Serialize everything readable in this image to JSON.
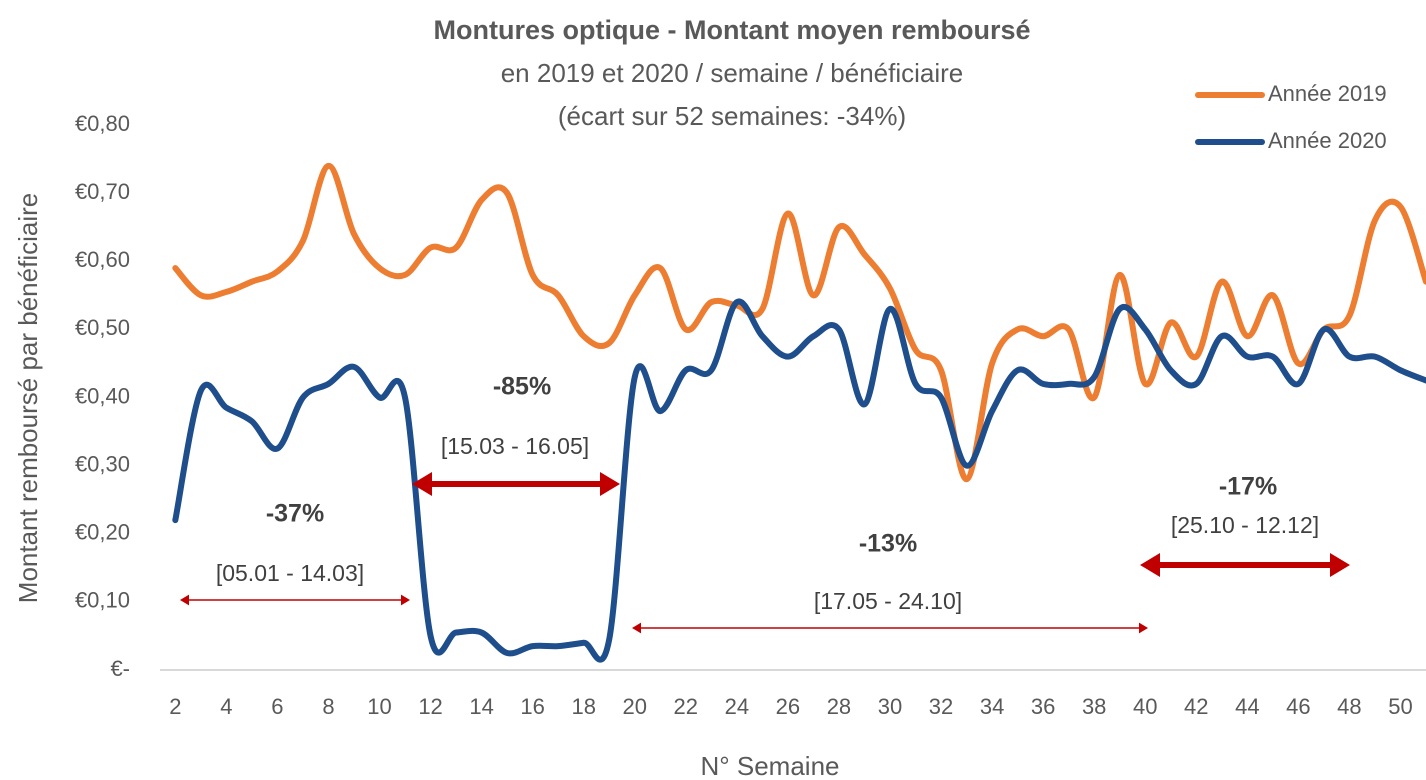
{
  "chart_data": {
    "type": "line",
    "title": "Montures optique - Montant moyen remboursé",
    "subtitle": [
      "en 2019 et 2020 / semaine / bénéficiaire",
      "(écart sur 52 semaines: -34%)"
    ],
    "x_label": "N° Semaine",
    "y_label": "Montant remboursé par bénéficiaire",
    "x": [
      2,
      3,
      4,
      5,
      6,
      7,
      8,
      9,
      10,
      11,
      12,
      13,
      14,
      15,
      16,
      17,
      18,
      19,
      20,
      21,
      22,
      23,
      24,
      25,
      26,
      27,
      28,
      29,
      30,
      31,
      32,
      33,
      34,
      35,
      36,
      37,
      38,
      39,
      40,
      41,
      42,
      43,
      44,
      45,
      46,
      47,
      48,
      49,
      50,
      51
    ],
    "series": [
      {
        "name": "Année 2019",
        "color": "#ED7D31",
        "values": [
          0.59,
          0.55,
          0.555,
          0.57,
          0.585,
          0.63,
          0.74,
          0.64,
          0.59,
          0.58,
          0.62,
          0.62,
          0.69,
          0.7,
          0.58,
          0.55,
          0.49,
          0.48,
          0.55,
          0.59,
          0.5,
          0.54,
          0.535,
          0.53,
          0.67,
          0.55,
          0.65,
          0.61,
          0.56,
          0.47,
          0.44,
          0.28,
          0.45,
          0.5,
          0.49,
          0.5,
          0.4,
          0.58,
          0.42,
          0.51,
          0.46,
          0.57,
          0.49,
          0.55,
          0.45,
          0.5,
          0.52,
          0.66,
          0.68,
          0.57
        ]
      },
      {
        "name": "Année 2020",
        "color": "#1F4E8C",
        "values": [
          0.22,
          0.41,
          0.385,
          0.365,
          0.325,
          0.4,
          0.42,
          0.445,
          0.4,
          0.4,
          0.05,
          0.055,
          0.055,
          0.025,
          0.035,
          0.035,
          0.04,
          0.045,
          0.43,
          0.38,
          0.44,
          0.44,
          0.54,
          0.49,
          0.46,
          0.49,
          0.5,
          0.39,
          0.53,
          0.42,
          0.4,
          0.3,
          0.38,
          0.44,
          0.42,
          0.42,
          0.43,
          0.53,
          0.5,
          0.44,
          0.42,
          0.49,
          0.46,
          0.46,
          0.42,
          0.5,
          0.46,
          0.46,
          0.44,
          0.425
        ]
      }
    ],
    "xlim": [
      1.4,
      51
    ],
    "xticks": [
      2,
      4,
      6,
      8,
      10,
      12,
      14,
      16,
      18,
      20,
      22,
      24,
      26,
      28,
      30,
      32,
      34,
      36,
      38,
      40,
      42,
      44,
      46,
      48,
      50
    ],
    "ylim": [
      0,
      0.8
    ],
    "yticks": [
      {
        "value": 0,
        "label": "€-"
      },
      {
        "value": 0.1,
        "label": "€0,10"
      },
      {
        "value": 0.2,
        "label": "€0,20"
      },
      {
        "value": 0.3,
        "label": "€0,30"
      },
      {
        "value": 0.4,
        "label": "€0,40"
      },
      {
        "value": 0.5,
        "label": "€0,50"
      },
      {
        "value": 0.6,
        "label": "€0,60"
      },
      {
        "value": 0.7,
        "label": "€0,70"
      },
      {
        "value": 0.8,
        "label": "€0,80"
      }
    ],
    "grid": false,
    "legend": "upper right",
    "annotations": [
      "-37%",
      "[05.01 - 14.03]",
      "-85%",
      "[15.03 - 16.05]",
      "-13%",
      "[17.05 - 24.10]",
      "-17%",
      "[25.10 - 12.12]"
    ],
    "arrow_color": "#C00000"
  }
}
